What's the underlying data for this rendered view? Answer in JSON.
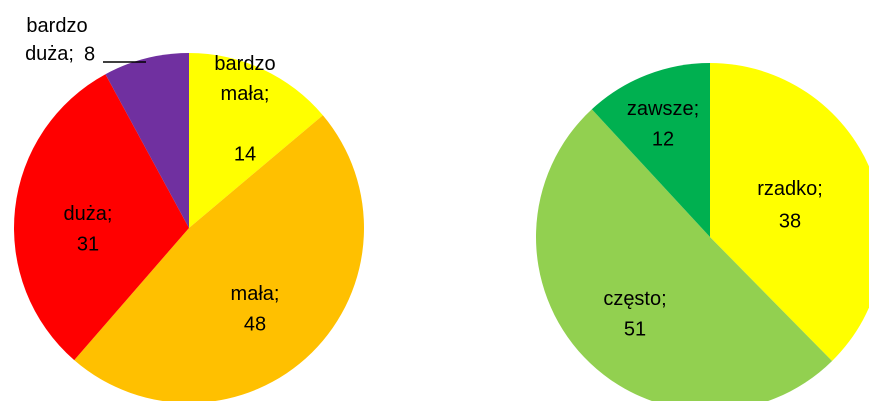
{
  "chart_data": [
    {
      "type": "pie",
      "categories": [
        "bardzo mała;",
        "mała;",
        "duża;",
        "bardzo duża;"
      ],
      "values": [
        14,
        48,
        31,
        8
      ],
      "colors": [
        "#ffff00",
        "#ffc000",
        "#ff0000",
        "#7030a0"
      ]
    },
    {
      "type": "pie",
      "categories": [
        "rzadko;",
        "często;",
        "zawsze;"
      ],
      "values": [
        38,
        51,
        12
      ],
      "colors": [
        "#ffff00",
        "#92d050",
        "#00b050"
      ]
    }
  ]
}
